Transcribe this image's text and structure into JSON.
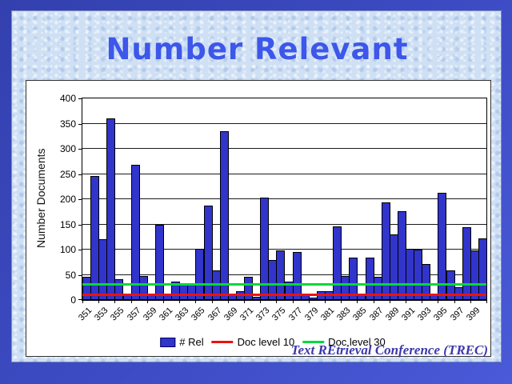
{
  "slide": {
    "title": "Number Relevant",
    "footer": "Text REtrieval Conference (TREC)"
  },
  "chart_data": {
    "type": "bar",
    "title": "Number Relevant",
    "xlabel": "",
    "ylabel": "Number Documents",
    "ylim": [
      0,
      400
    ],
    "ytick_step": 50,
    "ytick_labels": [
      "0",
      "50",
      "100",
      "150",
      "200",
      "250",
      "300",
      "350",
      "400"
    ],
    "grid": true,
    "legend_position": "bottom",
    "categories": [
      "351",
      "352",
      "353",
      "354",
      "355",
      "356",
      "357",
      "358",
      "359",
      "360",
      "361",
      "362",
      "363",
      "364",
      "365",
      "366",
      "367",
      "368",
      "369",
      "370",
      "371",
      "372",
      "373",
      "374",
      "375",
      "376",
      "377",
      "378",
      "379",
      "380",
      "381",
      "382",
      "383",
      "384",
      "385",
      "386",
      "387",
      "388",
      "389",
      "390",
      "391",
      "392",
      "393",
      "394",
      "395",
      "396",
      "397",
      "398",
      "399",
      "400"
    ],
    "xtick_labels": [
      "351",
      "353",
      "355",
      "357",
      "359",
      "361",
      "363",
      "365",
      "367",
      "369",
      "371",
      "373",
      "375",
      "377",
      "379",
      "381",
      "383",
      "385",
      "387",
      "389",
      "391",
      "393",
      "395",
      "397",
      "399"
    ],
    "series": [
      {
        "name": "# Rel",
        "type": "bar",
        "color": "#3135cb",
        "values": [
          46,
          246,
          120,
          360,
          42,
          13,
          269,
          48,
          13,
          150,
          9,
          37,
          33,
          34,
          101,
          188,
          58,
          335,
          10,
          17,
          46,
          6,
          203,
          79,
          99,
          37,
          96,
          10,
          4,
          18,
          18,
          146,
          47,
          84,
          13,
          84,
          46,
          194,
          130,
          177,
          101,
          100,
          71,
          12,
          212,
          58,
          25,
          145,
          99,
          123
        ]
      }
    ],
    "ref_lines": [
      {
        "name": "Doc level 10",
        "value": 10,
        "color": "#ee1111"
      },
      {
        "name": "Doc level 30",
        "value": 30,
        "color": "#00d93a"
      }
    ]
  },
  "colors": {
    "frame_blue": "#3d4cc4",
    "background_blue": "#cfe0f4",
    "title_blue": "#3d57ea",
    "bar_blue": "#3135cb",
    "ref_red": "#ee1111",
    "ref_green": "#00d93a",
    "footer_indigo": "#3c38ac"
  }
}
